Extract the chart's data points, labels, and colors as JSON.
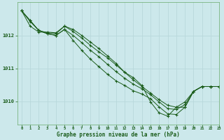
{
  "background_color": "#cce8eb",
  "grid_color": "#b8d8db",
  "line_color": "#1a5c1a",
  "marker_color": "#1a5c1a",
  "xlabel": "Graphe pression niveau de la mer (hPa)",
  "xlim": [
    -0.5,
    23
  ],
  "ylim": [
    1009.3,
    1013.0
  ],
  "yticks": [
    1010,
    1011,
    1012
  ],
  "xticks": [
    0,
    1,
    2,
    3,
    4,
    5,
    6,
    7,
    8,
    9,
    10,
    11,
    12,
    13,
    14,
    15,
    16,
    17,
    18,
    19,
    20,
    21,
    22,
    23
  ],
  "series": [
    [
      1012.75,
      1012.45,
      1012.15,
      1012.05,
      1012.0,
      1012.18,
      1011.85,
      1011.55,
      1011.28,
      1011.05,
      1010.82,
      1010.62,
      1010.48,
      1010.32,
      1010.22,
      1010.08,
      1009.83,
      1009.62,
      1009.6,
      1009.82,
      1010.3,
      1010.45,
      1010.45,
      1010.45
    ],
    [
      1012.75,
      1012.45,
      1012.15,
      1012.05,
      1012.0,
      1012.18,
      1012.0,
      1011.78,
      1011.55,
      1011.35,
      1011.12,
      1010.9,
      1010.7,
      1010.52,
      1010.38,
      1010.2,
      1009.98,
      1009.78,
      1009.75,
      1009.9,
      1010.3,
      1010.45,
      1010.45,
      1010.45
    ],
    [
      1012.75,
      1012.42,
      1012.15,
      1012.08,
      1012.05,
      1012.28,
      1012.18,
      1012.0,
      1011.8,
      1011.6,
      1011.38,
      1011.15,
      1010.88,
      1010.65,
      1010.45,
      1010.25,
      1010.05,
      1009.88,
      1009.82,
      1009.82,
      1010.3,
      1010.45,
      1010.45,
      1010.45
    ],
    [
      1012.75,
      1012.28,
      1012.1,
      1012.1,
      1012.08,
      1012.28,
      1012.12,
      1011.92,
      1011.7,
      1011.5,
      1011.32,
      1011.1,
      1010.88,
      1010.72,
      1010.48,
      1009.98,
      1009.65,
      1009.55,
      1009.82,
      1009.98,
      1010.3,
      1010.45,
      1010.45,
      1010.45
    ]
  ]
}
